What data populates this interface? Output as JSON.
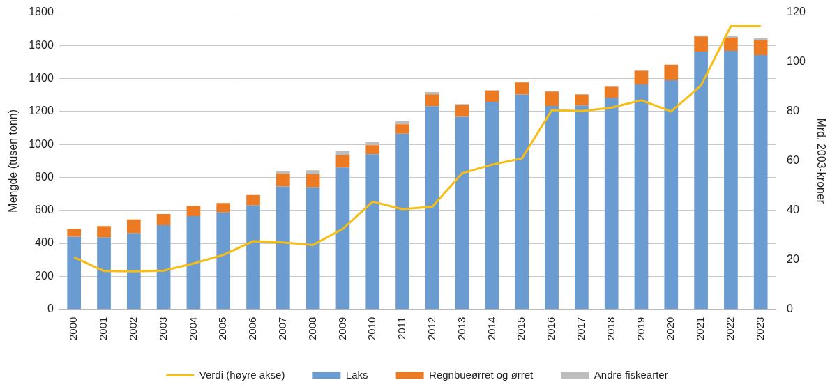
{
  "chart_data": {
    "type": "bar",
    "stacked": true,
    "grid": true,
    "legend": "bottom",
    "y_label": "Mengde (tusen tonn)",
    "y2_label": "Mrd. 2003-kroner",
    "categories": [
      "2000",
      "2001",
      "2002",
      "2003",
      "2004",
      "2005",
      "2006",
      "2007",
      "2008",
      "2009",
      "2010",
      "2011",
      "2012",
      "2013",
      "2014",
      "2015",
      "2016",
      "2017",
      "2018",
      "2019",
      "2020",
      "2021",
      "2022",
      "2023"
    ],
    "ylim": [
      0,
      1800
    ],
    "yticks": [
      0,
      200,
      400,
      600,
      800,
      1000,
      1200,
      1400,
      1600,
      1800
    ],
    "y2lim": [
      0,
      120
    ],
    "y2ticks": [
      0,
      20,
      40,
      60,
      80,
      100,
      120
    ],
    "series": [
      {
        "name": "Laks",
        "color": "#6a9bd1",
        "type": "bar",
        "values": [
          440,
          435,
          460,
          510,
          565,
          587,
          630,
          745,
          740,
          860,
          940,
          1065,
          1232,
          1168,
          1258,
          1303,
          1233,
          1236,
          1282,
          1364,
          1390,
          1563,
          1567,
          1542
        ]
      },
      {
        "name": "Regnbueørret og ørret",
        "color": "#ec7a22",
        "type": "bar",
        "values": [
          48,
          70,
          85,
          68,
          62,
          57,
          63,
          77,
          80,
          74,
          55,
          57,
          72,
          71,
          68,
          73,
          88,
          67,
          68,
          83,
          93,
          92,
          81,
          90
        ]
      },
      {
        "name": "Andre fiskearter",
        "color": "#bdbdbd",
        "type": "bar",
        "values": [
          0,
          0,
          0,
          0,
          0,
          0,
          0,
          15,
          23,
          25,
          20,
          18,
          14,
          6,
          3,
          2,
          2,
          2,
          2,
          2,
          2,
          6,
          8,
          12
        ]
      },
      {
        "name": "Verdi (høyre akse)",
        "color": "#f7bd13",
        "type": "line",
        "axis": "y2",
        "values": [
          21,
          15.5,
          15.3,
          15.6,
          18.5,
          22,
          27.5,
          27,
          26,
          32.5,
          43.5,
          40.5,
          41.5,
          55,
          58.5,
          61,
          80.5,
          80.2,
          81.5,
          84.5,
          80,
          90.5,
          114.5,
          114.5
        ]
      }
    ]
  }
}
